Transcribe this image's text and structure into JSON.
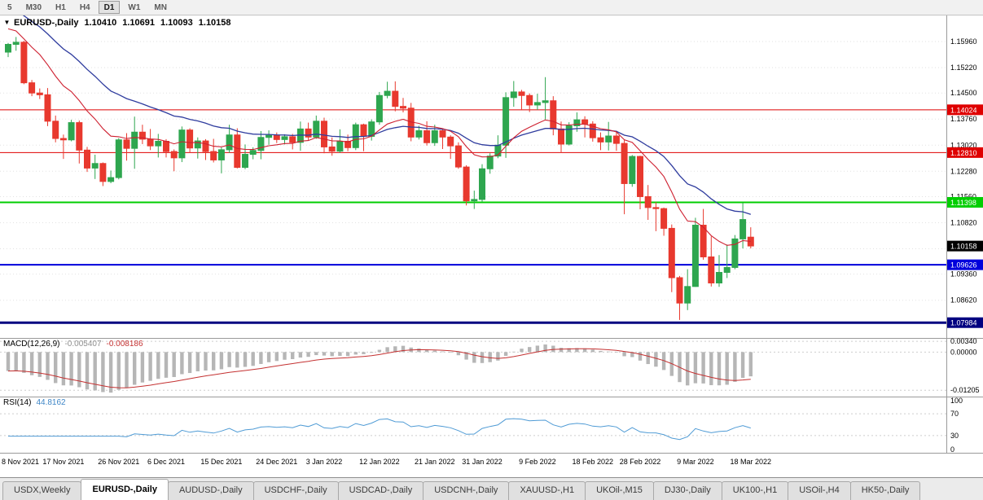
{
  "icons": {
    "dropdown": "▼"
  },
  "toolbar": {
    "timeframes": [
      "5",
      "M30",
      "H1",
      "H4",
      "D1",
      "W1",
      "MN"
    ],
    "active": "D1"
  },
  "chart_header": {
    "symbol": "EURUSD-,Daily",
    "open": "1.10410",
    "high": "1.10691",
    "low": "1.10093",
    "close": "1.10158"
  },
  "price_axis": {
    "ticks": [
      "1.15960",
      "1.15220",
      "1.14500",
      "1.13760",
      "1.13020",
      "1.12280",
      "1.11560",
      "1.10820",
      "1.10080",
      "1.09360",
      "1.08620"
    ]
  },
  "price_levels": [
    {
      "label": "1.14024",
      "price": 1.14024,
      "color": "#DF0000",
      "line_width": 1
    },
    {
      "label": "1.12810",
      "price": 1.1281,
      "color": "#DF0000",
      "line_width": 1
    },
    {
      "label": "1.11398",
      "price": 1.11398,
      "color": "#00CE00",
      "line_width": 2
    },
    {
      "label": "1.10158",
      "price": 1.10158,
      "color": "#000000",
      "line_width": 0
    },
    {
      "label": "1.09626",
      "price": 1.09626,
      "color": "#0000DC",
      "line_width": 2
    },
    {
      "label": "1.07984",
      "price": 1.07984,
      "color": "#000080",
      "line_width": 3
    }
  ],
  "macd_panel": {
    "label": "MACD(12,26,9)",
    "value_main": "-0.005407",
    "value_signal": "-0.008186",
    "axis": [
      {
        "label": "0.00340",
        "value": 0.0034
      },
      {
        "label": "0.00000",
        "value": 0
      },
      {
        "label": "-0.01205",
        "value": -0.01205
      }
    ]
  },
  "rsi_panel": {
    "label": "RSI(14)",
    "value": "44.8162",
    "axis": [
      {
        "label": "100",
        "value": 100,
        "line": false
      },
      {
        "label": "70",
        "value": 70,
        "line": true
      },
      {
        "label": "30",
        "value": 30,
        "line": true
      },
      {
        "label": "0",
        "value": 0,
        "line": false
      }
    ]
  },
  "date_axis": [
    {
      "label": "8 Nov 2021",
      "index": 0
    },
    {
      "label": "17 Nov 2021",
      "index": 7
    },
    {
      "label": "26 Nov 2021",
      "index": 14
    },
    {
      "label": "6 Dec 2021",
      "index": 20
    },
    {
      "label": "15 Dec 2021",
      "index": 27
    },
    {
      "label": "24 Dec 2021",
      "index": 34
    },
    {
      "label": "3 Jan 2022",
      "index": 40
    },
    {
      "label": "12 Jan 2022",
      "index": 47
    },
    {
      "label": "21 Jan 2022",
      "index": 54
    },
    {
      "label": "31 Jan 2022",
      "index": 60
    },
    {
      "label": "9 Feb 2022",
      "index": 67
    },
    {
      "label": "18 Feb 2022",
      "index": 74
    },
    {
      "label": "28 Feb 2022",
      "index": 80
    },
    {
      "label": "9 Mar 2022",
      "index": 87
    },
    {
      "label": "18 Mar 2022",
      "index": 94
    }
  ],
  "tabs": [
    {
      "label": "USDX,Weekly",
      "active": false
    },
    {
      "label": "EURUSD-,Daily",
      "active": true
    },
    {
      "label": "AUDUSD-,Daily",
      "active": false
    },
    {
      "label": "USDCHF-,Daily",
      "active": false
    },
    {
      "label": "USDCAD-,Daily",
      "active": false
    },
    {
      "label": "USDCNH-,Daily",
      "active": false
    },
    {
      "label": "XAUUSD-,H1",
      "active": false
    },
    {
      "label": "UKOil-,M15",
      "active": false
    },
    {
      "label": "DJ30-,Daily",
      "active": false
    },
    {
      "label": "UK100-,H1",
      "active": false
    },
    {
      "label": "USOil-,H4",
      "active": false
    },
    {
      "label": "HK50-,Daily",
      "active": false
    }
  ],
  "chart_data": {
    "type": "candlestick",
    "symbol": "EURUSD-",
    "timeframe": "Daily",
    "bars": 95,
    "date_range": "8 Nov 2021 - 18 Mar 2022",
    "colors": {
      "bull": "#2EA64F",
      "bear": "#E8392E"
    },
    "overlays": {
      "ma_fast": {
        "period": 12,
        "color": "#CE2030",
        "seed": 1.164
      },
      "ma_slow": {
        "period": 26,
        "color": "#2F3C9E",
        "seed": 1.17
      }
    },
    "indicators": {
      "macd": {
        "fast": 12,
        "slow": 26,
        "signal": 9,
        "hist_color": "#B6B6B6",
        "signal_color": "#C43131"
      },
      "rsi": {
        "period": 14,
        "color": "#4F9BD5"
      }
    },
    "candles": [
      [
        1.1566,
        1.1592,
        1.1552,
        1.1588
      ],
      [
        1.1588,
        1.1609,
        1.157,
        1.1594
      ],
      [
        1.1594,
        1.1598,
        1.1475,
        1.1479
      ],
      [
        1.1479,
        1.1487,
        1.1441,
        1.145
      ],
      [
        1.145,
        1.1463,
        1.1433,
        1.1445
      ],
      [
        1.1445,
        1.1464,
        1.1356,
        1.137
      ],
      [
        1.137,
        1.1386,
        1.131,
        1.1321
      ],
      [
        1.1321,
        1.1332,
        1.1263,
        1.1317
      ],
      [
        1.1317,
        1.1374,
        1.1313,
        1.1366
      ],
      [
        1.1366,
        1.1372,
        1.125,
        1.1288
      ],
      [
        1.1288,
        1.1297,
        1.1226,
        1.1237
      ],
      [
        1.1237,
        1.1275,
        1.1206,
        1.125
      ],
      [
        1.125,
        1.1253,
        1.1186,
        1.1199
      ],
      [
        1.1199,
        1.123,
        1.1194,
        1.121
      ],
      [
        1.121,
        1.1322,
        1.1205,
        1.1317
      ],
      [
        1.1317,
        1.1336,
        1.1258,
        1.1293
      ],
      [
        1.1293,
        1.1383,
        1.1235,
        1.1339
      ],
      [
        1.1339,
        1.136,
        1.1305,
        1.1319
      ],
      [
        1.1319,
        1.1348,
        1.1288,
        1.13
      ],
      [
        1.13,
        1.1334,
        1.1267,
        1.1313
      ],
      [
        1.1313,
        1.1319,
        1.1267,
        1.1284
      ],
      [
        1.1284,
        1.129,
        1.1228,
        1.1266
      ],
      [
        1.1266,
        1.1355,
        1.1254,
        1.1345
      ],
      [
        1.1345,
        1.135,
        1.128,
        1.1294
      ],
      [
        1.1294,
        1.1324,
        1.1264,
        1.1314
      ],
      [
        1.1314,
        1.1319,
        1.126,
        1.1284
      ],
      [
        1.1284,
        1.132,
        1.1253,
        1.126
      ],
      [
        1.126,
        1.1296,
        1.1222,
        1.1289
      ],
      [
        1.1289,
        1.136,
        1.128,
        1.1331
      ],
      [
        1.1331,
        1.135,
        1.1236,
        1.1239
      ],
      [
        1.1239,
        1.1304,
        1.1234,
        1.1276
      ],
      [
        1.1276,
        1.1296,
        1.1262,
        1.1287
      ],
      [
        1.1287,
        1.1342,
        1.1262,
        1.1324
      ],
      [
        1.1324,
        1.1344,
        1.1303,
        1.133
      ],
      [
        1.133,
        1.1338,
        1.1308,
        1.1318
      ],
      [
        1.1318,
        1.1333,
        1.1304,
        1.1326
      ],
      [
        1.1326,
        1.1334,
        1.129,
        1.131
      ],
      [
        1.131,
        1.1369,
        1.1286,
        1.1348
      ],
      [
        1.1348,
        1.1366,
        1.1316,
        1.1325
      ],
      [
        1.1325,
        1.1386,
        1.132,
        1.137
      ],
      [
        1.137,
        1.138,
        1.1279,
        1.1297
      ],
      [
        1.1297,
        1.1324,
        1.1272,
        1.1285
      ],
      [
        1.1285,
        1.1347,
        1.128,
        1.1313
      ],
      [
        1.1313,
        1.1332,
        1.1285,
        1.1295
      ],
      [
        1.1295,
        1.1366,
        1.1288,
        1.136
      ],
      [
        1.136,
        1.1363,
        1.1285,
        1.1327
      ],
      [
        1.1327,
        1.1375,
        1.1315,
        1.1368
      ],
      [
        1.1368,
        1.1453,
        1.136,
        1.1443
      ],
      [
        1.1443,
        1.1482,
        1.1435,
        1.1455
      ],
      [
        1.1455,
        1.1483,
        1.1398,
        1.1412
      ],
      [
        1.1412,
        1.1436,
        1.1395,
        1.1407
      ],
      [
        1.1407,
        1.1422,
        1.1313,
        1.1325
      ],
      [
        1.1325,
        1.1357,
        1.1318,
        1.1343
      ],
      [
        1.1343,
        1.137,
        1.1301,
        1.1309
      ],
      [
        1.1309,
        1.136,
        1.13,
        1.1343
      ],
      [
        1.1343,
        1.1349,
        1.1291,
        1.1325
      ],
      [
        1.1325,
        1.133,
        1.1263,
        1.13
      ],
      [
        1.13,
        1.131,
        1.1235,
        1.124
      ],
      [
        1.124,
        1.1245,
        1.1131,
        1.1144
      ],
      [
        1.1144,
        1.1173,
        1.1121,
        1.1148
      ],
      [
        1.1148,
        1.1248,
        1.1141,
        1.1235
      ],
      [
        1.1235,
        1.1279,
        1.1221,
        1.1271
      ],
      [
        1.1271,
        1.133,
        1.1265,
        1.1302
      ],
      [
        1.1302,
        1.1452,
        1.1266,
        1.1437
      ],
      [
        1.1437,
        1.1484,
        1.1411,
        1.1453
      ],
      [
        1.1453,
        1.1459,
        1.1401,
        1.1443
      ],
      [
        1.1443,
        1.1449,
        1.1396,
        1.1416
      ],
      [
        1.1416,
        1.1448,
        1.1402,
        1.1423
      ],
      [
        1.1423,
        1.1495,
        1.1375,
        1.1428
      ],
      [
        1.1428,
        1.1441,
        1.133,
        1.1348
      ],
      [
        1.1348,
        1.1369,
        1.128,
        1.1305
      ],
      [
        1.1305,
        1.1367,
        1.1301,
        1.1357
      ],
      [
        1.1357,
        1.1395,
        1.134,
        1.1374
      ],
      [
        1.1374,
        1.1384,
        1.1324,
        1.1362
      ],
      [
        1.1362,
        1.137,
        1.1312,
        1.1323
      ],
      [
        1.1323,
        1.1338,
        1.1288,
        1.1311
      ],
      [
        1.1311,
        1.1368,
        1.1287,
        1.1328
      ],
      [
        1.1328,
        1.1343,
        1.1286,
        1.1307
      ],
      [
        1.1307,
        1.1317,
        1.1106,
        1.1193
      ],
      [
        1.1193,
        1.1274,
        1.1184,
        1.127
      ],
      [
        1.127,
        1.1272,
        1.112,
        1.1156
      ],
      [
        1.1156,
        1.1189,
        1.109,
        1.1125
      ],
      [
        1.1125,
        1.114,
        1.1058,
        1.1122
      ],
      [
        1.1122,
        1.1125,
        1.1045,
        1.1066
      ],
      [
        1.1066,
        1.1077,
        1.0885,
        1.0926
      ],
      [
        1.0926,
        1.0931,
        1.0806,
        1.0854
      ],
      [
        1.0854,
        1.095,
        1.0834,
        1.0901
      ],
      [
        1.0901,
        1.1096,
        1.09,
        1.1075
      ],
      [
        1.1075,
        1.1121,
        1.0977,
        1.0985
      ],
      [
        1.0985,
        1.1043,
        1.0901,
        1.0911
      ],
      [
        1.0911,
        1.099,
        1.09,
        1.0941
      ],
      [
        1.0941,
        1.102,
        1.0925,
        1.0955
      ],
      [
        1.0955,
        1.1047,
        1.095,
        1.1036
      ],
      [
        1.1036,
        1.1138,
        1.1009,
        1.1091
      ],
      [
        1.1041,
        1.1069,
        1.1009,
        1.1016
      ]
    ]
  }
}
